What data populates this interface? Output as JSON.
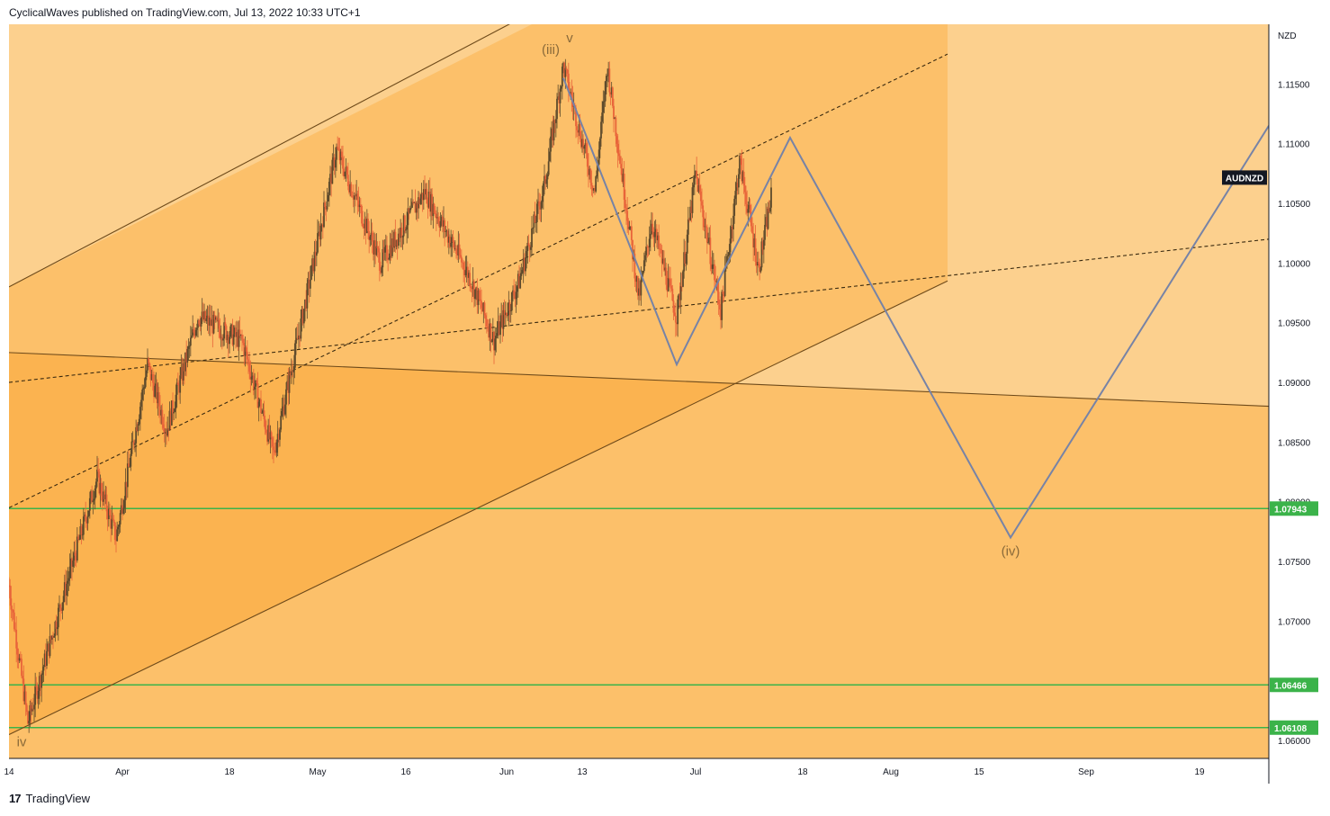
{
  "header": {
    "published": "CyclicalWaves published on TradingView.com, Jul 13, 2022 10:33 UTC+1"
  },
  "footer": {
    "logo_glyph": "17",
    "brand": "TradingView"
  },
  "chart_data": {
    "type": "candlestick",
    "symbol": "AUDNZD",
    "currency": "NZD",
    "ylim": [
      1.0585,
      1.12
    ],
    "y_ticks": [
      "1.11500",
      "1.11000",
      "1.10500",
      "1.10000",
      "1.09500",
      "1.09000",
      "1.08500",
      "1.08000",
      "1.07500",
      "1.07000",
      "1.06000"
    ],
    "y_tick_values": [
      1.115,
      1.11,
      1.105,
      1.1,
      1.095,
      1.09,
      1.085,
      1.08,
      1.075,
      1.07,
      1.06
    ],
    "x_ticks": [
      {
        "label": "14",
        "date": "2022-03-14"
      },
      {
        "label": "Apr",
        "date": "2022-04-01"
      },
      {
        "label": "18",
        "date": "2022-04-18"
      },
      {
        "label": "May",
        "date": "2022-05-02"
      },
      {
        "label": "16",
        "date": "2022-05-16"
      },
      {
        "label": "Jun",
        "date": "2022-06-01"
      },
      {
        "label": "13",
        "date": "2022-06-13"
      },
      {
        "label": "Jul",
        "date": "2022-07-01"
      },
      {
        "label": "18",
        "date": "2022-07-18"
      },
      {
        "label": "Aug",
        "date": "2022-08-01"
      },
      {
        "label": "15",
        "date": "2022-08-15"
      },
      {
        "label": "Sep",
        "date": "2022-09-01"
      },
      {
        "label": "19",
        "date": "2022-09-19"
      }
    ],
    "xlim": [
      "2022-03-14",
      "2022-09-30"
    ],
    "price_path": [
      {
        "date": "2022-03-14",
        "value": 1.073
      },
      {
        "date": "2022-03-17",
        "value": 1.0615
      },
      {
        "date": "2022-03-22",
        "value": 1.071
      },
      {
        "date": "2022-03-28",
        "value": 1.082
      },
      {
        "date": "2022-03-31",
        "value": 1.077
      },
      {
        "date": "2022-04-05",
        "value": 1.0915
      },
      {
        "date": "2022-04-08",
        "value": 1.086
      },
      {
        "date": "2022-04-13",
        "value": 1.0955
      },
      {
        "date": "2022-04-20",
        "value": 1.0935
      },
      {
        "date": "2022-04-25",
        "value": 1.084
      },
      {
        "date": "2022-04-29",
        "value": 1.094
      },
      {
        "date": "2022-05-05",
        "value": 1.1095
      },
      {
        "date": "2022-05-12",
        "value": 1.1
      },
      {
        "date": "2022-05-19",
        "value": 1.106
      },
      {
        "date": "2022-05-26",
        "value": 1.099
      },
      {
        "date": "2022-05-30",
        "value": 1.0935
      },
      {
        "date": "2022-06-03",
        "value": 1.0985
      },
      {
        "date": "2022-06-07",
        "value": 1.1065
      },
      {
        "date": "2022-06-10",
        "value": 1.1165
      },
      {
        "date": "2022-06-15",
        "value": 1.106
      },
      {
        "date": "2022-06-17",
        "value": 1.1165
      },
      {
        "date": "2022-06-22",
        "value": 1.097
      },
      {
        "date": "2022-06-24",
        "value": 1.1035
      },
      {
        "date": "2022-06-28",
        "value": 1.0955
      },
      {
        "date": "2022-07-01",
        "value": 1.1075
      },
      {
        "date": "2022-07-05",
        "value": 1.096
      },
      {
        "date": "2022-07-08",
        "value": 1.1085
      },
      {
        "date": "2022-07-11",
        "value": 1.0995
      },
      {
        "date": "2022-07-13",
        "value": 1.1055
      }
    ],
    "projection_path": [
      {
        "date": "2022-06-10",
        "value": 1.1155
      },
      {
        "date": "2022-06-28",
        "value": 1.0915
      },
      {
        "date": "2022-07-16",
        "value": 1.1105
      },
      {
        "date": "2022-08-20",
        "value": 1.077
      },
      {
        "date": "2022-09-30",
        "value": 1.1115
      }
    ],
    "horizontal_levels": [
      {
        "label": "1.07943",
        "value": 1.07943,
        "color": "#3bb34a"
      },
      {
        "label": "1.06466",
        "value": 1.06466,
        "color": "#3bb34a"
      },
      {
        "label": "1.06108",
        "value": 1.06108,
        "color": "#3bb34a"
      }
    ],
    "trend_lines": [
      {
        "start": {
          "date": "2022-03-14",
          "value": 1.098
        },
        "end": {
          "date": "2022-06-05",
          "value": 1.121
        },
        "style": "solid"
      },
      {
        "start": {
          "date": "2022-03-14",
          "value": 1.0605
        },
        "end": {
          "date": "2022-08-10",
          "value": 1.0985
        },
        "style": "solid"
      },
      {
        "start": {
          "date": "2022-03-14",
          "value": 1.0925
        },
        "end": {
          "date": "2022-09-30",
          "value": 1.088
        },
        "style": "solid"
      },
      {
        "start": {
          "date": "2022-03-14",
          "value": 1.0795
        },
        "end": {
          "date": "2022-08-10",
          "value": 1.1175
        },
        "style": "dashed"
      },
      {
        "start": {
          "date": "2022-03-14",
          "value": 1.09
        },
        "end": {
          "date": "2022-09-30",
          "value": 1.102
        },
        "style": "dashed"
      }
    ],
    "wave_labels": [
      {
        "text": "(iii)",
        "date": "2022-06-08",
        "value": 1.1175
      },
      {
        "text": "v",
        "date": "2022-06-11",
        "value": 1.1185
      },
      {
        "text": "iv",
        "date": "2022-03-16",
        "value": 1.0595
      },
      {
        "text": "(iv)",
        "date": "2022-08-20",
        "value": 1.0755
      }
    ],
    "symbol_badge": {
      "text": "AUDNZD",
      "value": 1.1055
    },
    "colors": {
      "zone_light": "#fcd08e",
      "zone_mid": "#fcc06a",
      "zone_dark": "#fbb350",
      "up_candle": "#5d4a2c",
      "down_candle": "#e8643a",
      "projection": "#7783a6",
      "level_green": "#3bb34a",
      "trend_line": "#6e4a1a"
    }
  }
}
